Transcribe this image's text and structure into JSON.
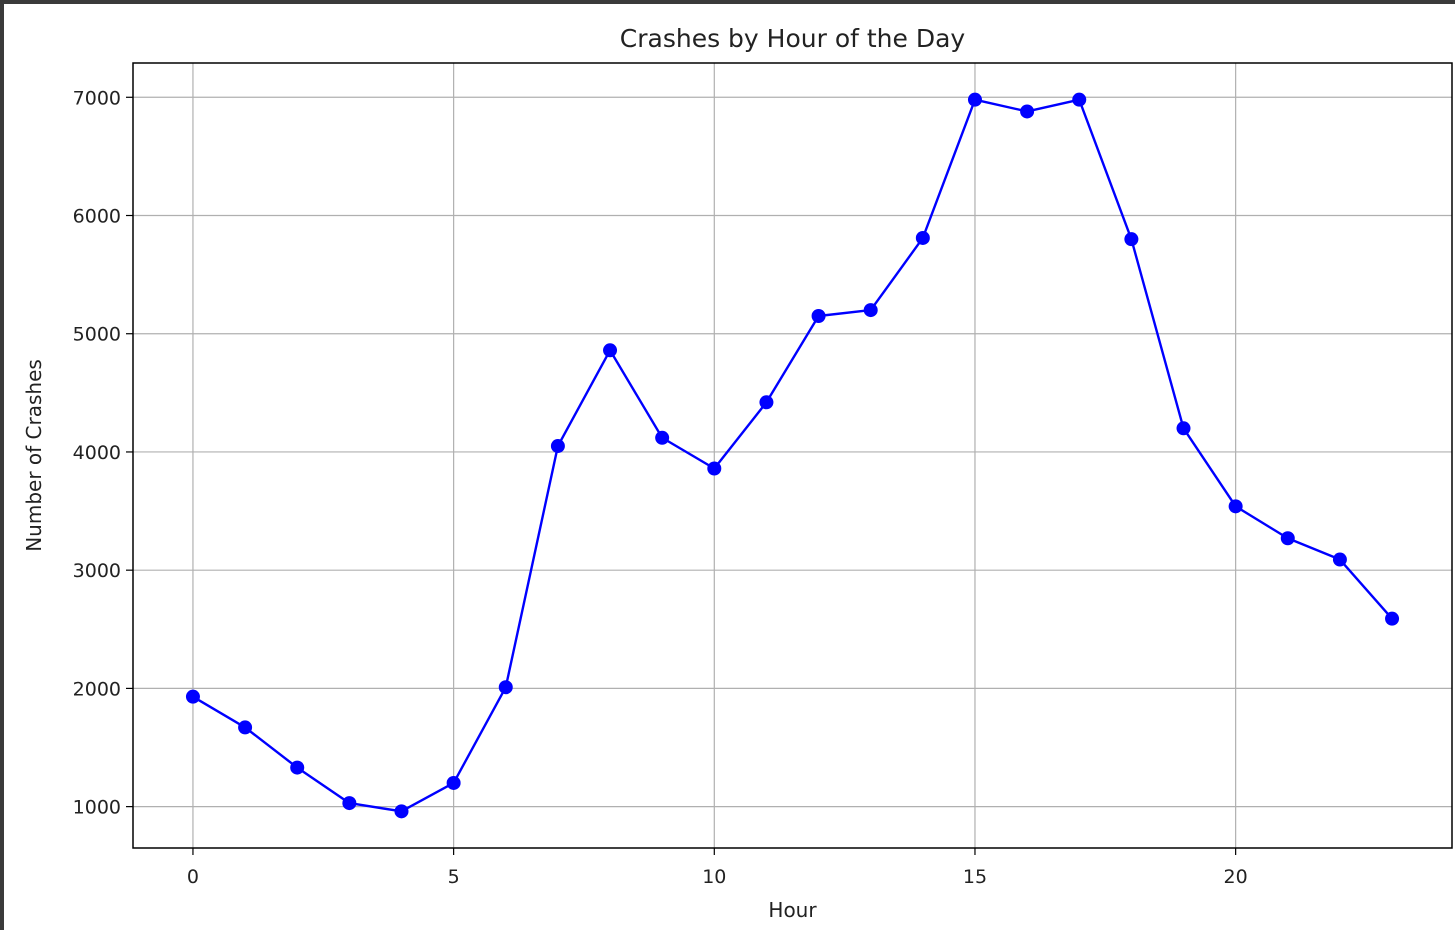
{
  "chart_data": {
    "type": "line",
    "title": "Crashes by Hour of the Day",
    "xlabel": "Hour",
    "ylabel": "Number of Crashes",
    "xlim": [
      -1.15,
      24.15
    ],
    "ylim": [
      650,
      7290
    ],
    "xticks": [
      0,
      5,
      10,
      15,
      20
    ],
    "yticks": [
      1000,
      2000,
      3000,
      4000,
      5000,
      6000,
      7000
    ],
    "grid": true,
    "series": [
      {
        "color": "#0000ff",
        "marker": "circle",
        "x": [
          0,
          1,
          2,
          3,
          4,
          5,
          6,
          7,
          8,
          9,
          10,
          11,
          12,
          13,
          14,
          15,
          16,
          17,
          18,
          19,
          20,
          21,
          22,
          23
        ],
        "y": [
          1930,
          1670,
          1330,
          1030,
          960,
          1200,
          2010,
          4050,
          4860,
          4120,
          3860,
          4420,
          5150,
          5200,
          5810,
          6980,
          6880,
          6980,
          5800,
          4200,
          3540,
          3270,
          3090,
          2590
        ]
      }
    ]
  }
}
